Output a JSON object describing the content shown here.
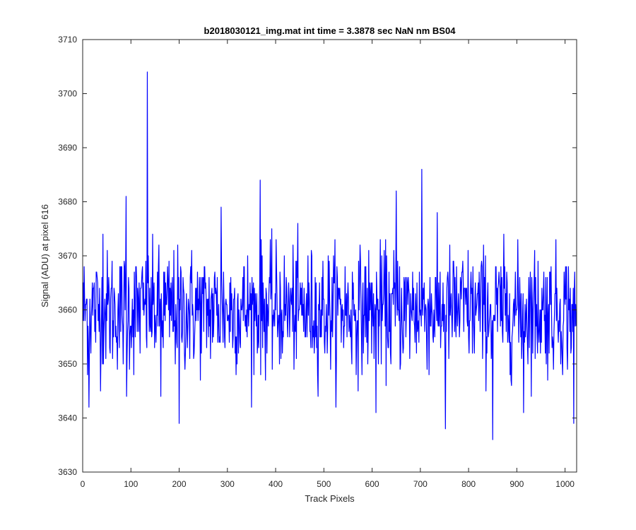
{
  "chart_data": {
    "type": "line",
    "title": "b2018030121_img.mat int time = 3.3878 sec  NaN nm BS04",
    "xlabel": "Track Pixels",
    "ylabel": "Signal (ADU) at pixel 616",
    "xlim": [
      0,
      1024
    ],
    "ylim": [
      3630,
      3710
    ],
    "xticks": [
      0,
      100,
      200,
      300,
      400,
      500,
      600,
      700,
      800,
      900,
      1000
    ],
    "yticks": [
      3630,
      3640,
      3650,
      3660,
      3670,
      3680,
      3690,
      3700,
      3710
    ],
    "grid": false,
    "series": [
      {
        "color": "#0000ff",
        "n_points": 1024,
        "mean": 3660,
        "noise_spread": 8,
        "approx_range": [
          3636,
          3704
        ],
        "notable_points": [
          {
            "x": 13,
            "y": 3642
          },
          {
            "x": 42,
            "y": 3674
          },
          {
            "x": 90,
            "y": 3681
          },
          {
            "x": 91,
            "y": 3644
          },
          {
            "x": 134,
            "y": 3704
          },
          {
            "x": 162,
            "y": 3644
          },
          {
            "x": 200,
            "y": 3639
          },
          {
            "x": 287,
            "y": 3679
          },
          {
            "x": 368,
            "y": 3684
          },
          {
            "x": 608,
            "y": 3641
          },
          {
            "x": 650,
            "y": 3682
          },
          {
            "x": 703,
            "y": 3686
          },
          {
            "x": 752,
            "y": 3638
          },
          {
            "x": 850,
            "y": 3636
          },
          {
            "x": 914,
            "y": 3641
          },
          {
            "x": 1018,
            "y": 3639
          }
        ]
      }
    ]
  }
}
